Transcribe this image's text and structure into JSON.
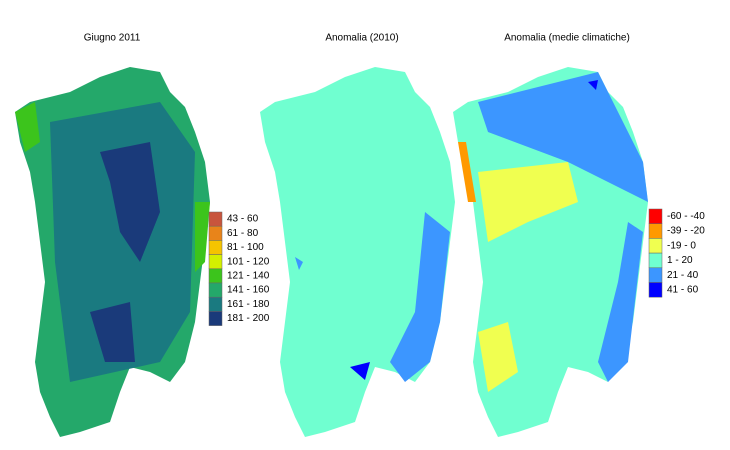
{
  "maps": [
    {
      "title": "Giugno 2011",
      "legend": [
        {
          "label": "43 - 60",
          "color": "#c8553d"
        },
        {
          "label": "61 - 80",
          "color": "#e8841a"
        },
        {
          "label": "81 - 100",
          "color": "#f5c400"
        },
        {
          "label": "101 - 120",
          "color": "#d4f000"
        },
        {
          "label": "121 - 140",
          "color": "#3cc41c"
        },
        {
          "label": "141 - 160",
          "color": "#24a86a"
        },
        {
          "label": "161 - 180",
          "color": "#1a7a80"
        },
        {
          "label": "181 - 200",
          "color": "#1a3a7a"
        }
      ]
    },
    {
      "title": "Anomalia (2010)"
    },
    {
      "title": "Anomalia (medie climatiche)",
      "legend": [
        {
          "label": "-60 - -40",
          "color": "#ff0000"
        },
        {
          "label": "-39 - -20",
          "color": "#ff9900"
        },
        {
          "label": "-19 - 0",
          "color": "#f0ff50"
        },
        {
          "label": "1 - 20",
          "color": "#70ffd0"
        },
        {
          "label": "21 - 40",
          "color": "#3c96ff"
        },
        {
          "label": "41 - 60",
          "color": "#0000ff"
        }
      ]
    }
  ]
}
